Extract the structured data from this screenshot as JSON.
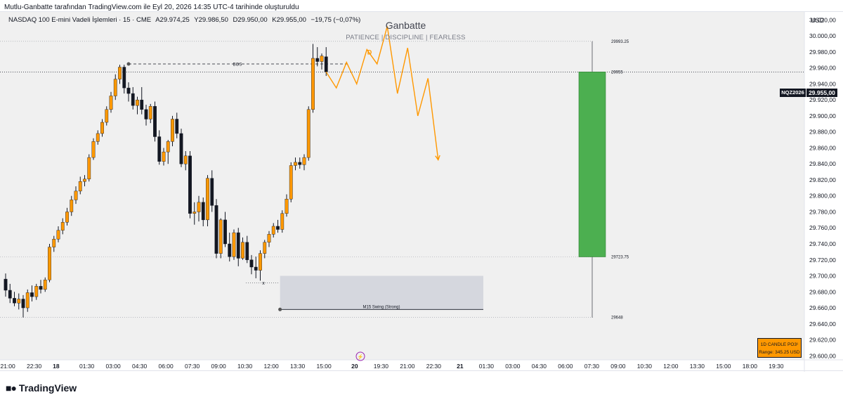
{
  "attribution": "Mutlu-Ganbatte tarafından TradingView.com ile Eyl 20, 2026 14:35 UTC-4 tarihinde oluşturuldu",
  "symbol_line": {
    "name": "NASDAQ 100 E-mini Vadeli İşlemleri · 15 · CME",
    "open": "A29.974,25",
    "high": "Y29.986,50",
    "low": "D29.950,00",
    "close": "K29.955,00",
    "change": "−19,75 (−0,07%)"
  },
  "brand": {
    "title": "Ganbatte",
    "subtitle": "PATIENCE  |  DISCIPLINE  |  FEARLESS"
  },
  "currency": "USD",
  "ticker_tag": "NQZ2026",
  "price_tag": "29.955,00",
  "info_box": {
    "line1": "1D CANDLE PO3¹",
    "line2": "Range: 345.25 USD"
  },
  "logo_text": "TradingView",
  "colors": {
    "up": "#ff9800",
    "down": "#131722",
    "accent": "#ff9800",
    "green_box": "#4caf50",
    "gray_box": "#d1d4dc"
  },
  "chart_data": {
    "type": "candlestick",
    "timeframe": "15",
    "ylim": [
      29595,
      30030
    ],
    "y_ticks": [
      30020,
      30000,
      29980,
      29960,
      29940,
      29920,
      29900,
      29880,
      29860,
      29840,
      29820,
      29800,
      29780,
      29760,
      29740,
      29720,
      29700,
      29680,
      29660,
      29640,
      29620,
      29600
    ],
    "y_tick_labels": [
      "30.020,00",
      "30.000,00",
      "29.980,00",
      "29.960,00",
      "29.940,00",
      "29.920,00",
      "29.900,00",
      "29.880,00",
      "29.860,00",
      "29.840,00",
      "29.820,00",
      "29.800,00",
      "29.780,00",
      "29.760,00",
      "29.740,00",
      "29.720,00",
      "29.700,00",
      "29.680,00",
      "29.660,00",
      "29.640,00",
      "29.620,00",
      "29.600,00"
    ],
    "x_ticks": [
      {
        "label": "21:00",
        "bar": 0.5
      },
      {
        "label": "22:30",
        "bar": 6.5
      },
      {
        "label": "18",
        "bar": 11.5
      },
      {
        "label": "01:30",
        "bar": 18.5
      },
      {
        "label": "03:00",
        "bar": 24.5
      },
      {
        "label": "04:30",
        "bar": 30.5
      },
      {
        "label": "06:00",
        "bar": 36.5
      },
      {
        "label": "07:30",
        "bar": 42.5
      },
      {
        "label": "09:00",
        "bar": 48.5
      },
      {
        "label": "10:30",
        "bar": 54.5
      },
      {
        "label": "12:00",
        "bar": 60.5
      },
      {
        "label": "13:30",
        "bar": 66.5
      },
      {
        "label": "15:00",
        "bar": 72.5
      },
      {
        "label": "20",
        "bar": 79.5
      },
      {
        "label": "19:30",
        "bar": 85.5
      },
      {
        "label": "21:00",
        "bar": 91.5
      },
      {
        "label": "22:30",
        "bar": 97.5
      },
      {
        "label": "21",
        "bar": 103.5
      },
      {
        "label": "01:30",
        "bar": 109.5
      },
      {
        "label": "03:00",
        "bar": 115.5
      },
      {
        "label": "04:30",
        "bar": 121.5
      },
      {
        "label": "06:00",
        "bar": 127.5
      },
      {
        "label": "07:30",
        "bar": 133.5
      },
      {
        "label": "09:00",
        "bar": 139.5
      },
      {
        "label": "10:30",
        "bar": 145.5
      },
      {
        "label": "12:00",
        "bar": 151.5
      },
      {
        "label": "13:30",
        "bar": 157.5
      },
      {
        "label": "15:00",
        "bar": 163.5
      },
      {
        "label": "18:00",
        "bar": 169.5
      },
      {
        "label": "19:30",
        "bar": 175.5
      }
    ],
    "ohlc": [
      [
        29696,
        29703,
        29674,
        29682
      ],
      [
        29682,
        29690,
        29666,
        29672
      ],
      [
        29672,
        29680,
        29662,
        29666
      ],
      [
        29666,
        29678,
        29658,
        29671
      ],
      [
        29671,
        29676,
        29648,
        29660
      ],
      [
        29660,
        29683,
        29655,
        29679
      ],
      [
        29679,
        29688,
        29668,
        29674
      ],
      [
        29674,
        29690,
        29670,
        29687
      ],
      [
        29687,
        29695,
        29678,
        29683
      ],
      [
        29683,
        29698,
        29680,
        29695
      ],
      [
        29695,
        29740,
        29692,
        29736
      ],
      [
        29736,
        29750,
        29730,
        29746
      ],
      [
        29746,
        29762,
        29742,
        29757
      ],
      [
        29757,
        29772,
        29752,
        29767
      ],
      [
        29767,
        29785,
        29763,
        29780
      ],
      [
        29780,
        29800,
        29775,
        29795
      ],
      [
        29795,
        29812,
        29790,
        29806
      ],
      [
        29806,
        29824,
        29802,
        29818
      ],
      [
        29818,
        29826,
        29812,
        29821
      ],
      [
        29821,
        29852,
        29818,
        29848
      ],
      [
        29848,
        29872,
        29845,
        29868
      ],
      [
        29868,
        29882,
        29864,
        29878
      ],
      [
        29878,
        29896,
        29874,
        29892
      ],
      [
        29892,
        29912,
        29888,
        29908
      ],
      [
        29908,
        29930,
        29904,
        29925
      ],
      [
        29925,
        29952,
        29920,
        29946
      ],
      [
        29946,
        29964,
        29940,
        29961
      ],
      [
        29961,
        29964,
        29928,
        29935
      ],
      [
        29935,
        29942,
        29918,
        29928
      ],
      [
        29928,
        29936,
        29908,
        29913
      ],
      [
        29913,
        29924,
        29902,
        29920
      ],
      [
        29920,
        29936,
        29902,
        29908
      ],
      [
        29908,
        29914,
        29888,
        29896
      ],
      [
        29896,
        29915,
        29891,
        29912
      ],
      [
        29912,
        29918,
        29868,
        29874
      ],
      [
        29874,
        29882,
        29839,
        29843
      ],
      [
        29843,
        29860,
        29838,
        29855
      ],
      [
        29855,
        29870,
        29840,
        29868
      ],
      [
        29868,
        29900,
        29862,
        29896
      ],
      [
        29896,
        29904,
        29872,
        29878
      ],
      [
        29878,
        29884,
        29836,
        29840
      ],
      [
        29840,
        29856,
        29832,
        29850
      ],
      [
        29850,
        29856,
        29772,
        29778
      ],
      [
        29778,
        29792,
        29764,
        29780
      ],
      [
        29780,
        29800,
        29768,
        29792
      ],
      [
        29792,
        29798,
        29762,
        29770
      ],
      [
        29770,
        29826,
        29762,
        29822
      ],
      [
        29822,
        29832,
        29780,
        29788
      ],
      [
        29788,
        29796,
        29722,
        29728
      ],
      [
        29728,
        29772,
        29722,
        29770
      ],
      [
        29770,
        29780,
        29736,
        29740
      ],
      [
        29740,
        29754,
        29718,
        29724
      ],
      [
        29724,
        29758,
        29720,
        29754
      ],
      [
        29754,
        29760,
        29712,
        29722
      ],
      [
        29722,
        29748,
        29720,
        29742
      ],
      [
        29742,
        29750,
        29716,
        29720
      ],
      [
        29720,
        29726,
        29702,
        29711
      ],
      [
        29711,
        29724,
        29697,
        29707
      ],
      [
        29707,
        29732,
        29694,
        29728
      ],
      [
        29728,
        29745,
        29722,
        29742
      ],
      [
        29742,
        29756,
        29736,
        29752
      ],
      [
        29752,
        29766,
        29748,
        29762
      ],
      [
        29762,
        29770,
        29754,
        29758
      ],
      [
        29758,
        29782,
        29754,
        29778
      ],
      [
        29778,
        29802,
        29774,
        29796
      ],
      [
        29796,
        29842,
        29792,
        29838
      ],
      [
        29838,
        29848,
        29832,
        29842
      ],
      [
        29842,
        29848,
        29834,
        29839
      ],
      [
        29839,
        29852,
        29832,
        29848
      ],
      [
        29848,
        29912,
        29844,
        29908
      ],
      [
        29908,
        29990,
        29904,
        29972
      ],
      [
        29972,
        29986,
        29962,
        29968
      ],
      [
        29968,
        29978,
        29958,
        29975
      ],
      [
        29974,
        29986,
        29950,
        29955
      ]
    ],
    "projection": [
      [
        29955,
        0
      ],
      [
        29935,
        1
      ],
      [
        29967,
        2
      ],
      [
        29940,
        3
      ],
      [
        29983,
        4
      ],
      [
        29965,
        5
      ],
      [
        30012,
        6
      ],
      [
        29928,
        7
      ],
      [
        29985,
        8
      ],
      [
        29900,
        9
      ],
      [
        29947,
        10
      ],
      [
        29845,
        11
      ]
    ],
    "annotations": {
      "bos_label": "BOS",
      "bos_price": 29965,
      "swing_label": "M15 Swing (Strong)",
      "swing_price": 29658,
      "d_label": "D",
      "x_label": "x",
      "range_high_label": "29993.25",
      "range_high": 29993.25,
      "range_low_label": "29648",
      "range_low": 29648,
      "green_top_label": "29955",
      "green_top": 29955,
      "green_bottom_label": "29723.75",
      "green_bottom": 29723.75
    }
  }
}
